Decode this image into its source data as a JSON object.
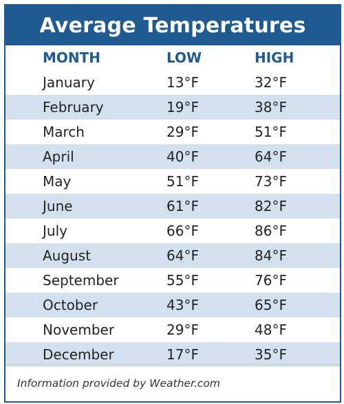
{
  "title": "Average Temperatures",
  "headers": {
    "month": "MONTH",
    "low": "LOW",
    "high": "HIGH"
  },
  "rows": [
    {
      "month": "January",
      "low": "13°F",
      "high": "32°F"
    },
    {
      "month": "February",
      "low": "19°F",
      "high": "38°F"
    },
    {
      "month": "March",
      "low": "29°F",
      "high": "51°F"
    },
    {
      "month": "April",
      "low": "40°F",
      "high": "64°F"
    },
    {
      "month": "May",
      "low": "51°F",
      "high": "73°F"
    },
    {
      "month": "June",
      "low": "61°F",
      "high": "82°F"
    },
    {
      "month": "July",
      "low": "66°F",
      "high": "86°F"
    },
    {
      "month": "August",
      "low": "64°F",
      "high": "84°F"
    },
    {
      "month": "September",
      "low": "55°F",
      "high": "76°F"
    },
    {
      "month": "October",
      "low": "43°F",
      "high": "65°F"
    },
    {
      "month": "November",
      "low": "29°F",
      "high": "48°F"
    },
    {
      "month": "December",
      "low": "17°F",
      "high": "35°F"
    }
  ],
  "footer": "Information provided by Weather.com",
  "colors": {
    "accent": "#1f5a92",
    "row_stripe": "#d3e1ee",
    "text": "#222222"
  }
}
